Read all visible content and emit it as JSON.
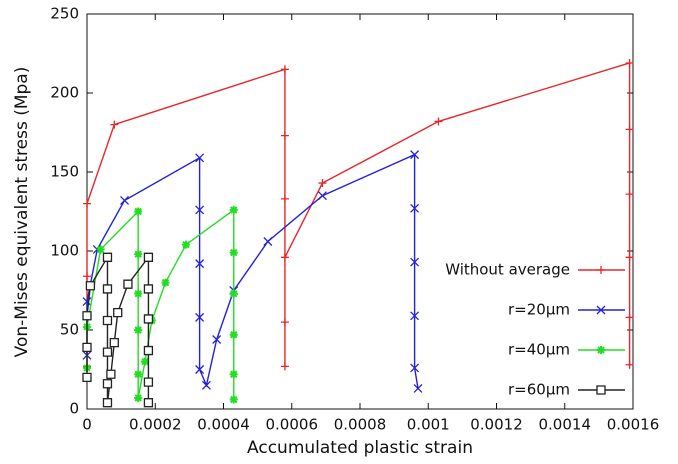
{
  "chart_data": {
    "type": "line",
    "xlabel": "Accumulated plastic strain",
    "ylabel": "Von-Mises equivalent stress (Mpa)",
    "xlim": [
      0,
      0.0016
    ],
    "ylim": [
      0,
      250
    ],
    "xticks": [
      0,
      0.0002,
      0.0004,
      0.0006,
      0.0008,
      0.001,
      0.0012,
      0.0014,
      0.0016
    ],
    "yticks": [
      0,
      50,
      100,
      150,
      200,
      250
    ],
    "legend": "lower right",
    "series": [
      {
        "name": "Without average",
        "color": "#e8262a",
        "marker": "plus",
        "x": [
          0,
          0,
          0,
          0,
          8e-05,
          0.00058,
          0.00058,
          0.00058,
          0.00058,
          0.00058,
          0.00058,
          0.00069,
          0.00103,
          0.00159,
          0.00159,
          0.00159,
          0.00159,
          0.00159,
          0.00159
        ],
        "values": [
          27,
          52,
          84,
          130,
          180,
          215,
          173,
          133,
          55,
          27,
          96,
          143,
          182,
          219,
          177,
          136,
          96,
          58,
          28
        ]
      },
      {
        "name": "r=20μm",
        "color": "#2222dd",
        "marker": "cross",
        "x": [
          0,
          0,
          3e-05,
          0.00011,
          0.00033,
          0.00033,
          0.00033,
          0.00033,
          0.00033,
          0.00035,
          0.00038,
          0.00043,
          0.00053,
          0.00069,
          0.00096,
          0.00096,
          0.00096,
          0.00096,
          0.00096,
          0.00097
        ],
        "values": [
          34,
          68,
          101,
          132,
          159,
          126,
          92,
          58,
          25,
          15,
          44,
          75,
          106,
          135,
          161,
          127,
          93,
          59,
          26,
          13
        ]
      },
      {
        "name": "r=40μm",
        "color": "#22dd22",
        "marker": "star",
        "x": [
          0,
          0,
          4e-05,
          0.00015,
          0.00015,
          0.00015,
          0.00015,
          0.00015,
          0.00015,
          0.00017,
          0.00019,
          0.00023,
          0.00029,
          0.00043,
          0.00043,
          0.00043,
          0.00043,
          0.00043,
          0.00043
        ],
        "values": [
          26,
          52,
          101,
          125,
          98,
          73,
          50,
          22,
          7,
          30,
          56,
          80,
          104,
          126,
          99,
          73,
          47,
          22,
          6
        ]
      },
      {
        "name": "r=60μm",
        "color": "#222222",
        "marker": "square",
        "x": [
          0,
          0,
          0,
          1e-05,
          6e-05,
          6e-05,
          6e-05,
          6e-05,
          6e-05,
          6e-05,
          7e-05,
          8e-05,
          9e-05,
          0.00012,
          0.00018,
          0.00018,
          0.00018,
          0.00018,
          0.00018,
          0.00018
        ],
        "values": [
          20,
          39,
          59,
          78,
          96,
          76,
          56,
          36,
          16,
          4,
          22,
          42,
          61,
          79,
          96,
          76,
          57,
          37,
          17,
          4
        ]
      }
    ]
  }
}
